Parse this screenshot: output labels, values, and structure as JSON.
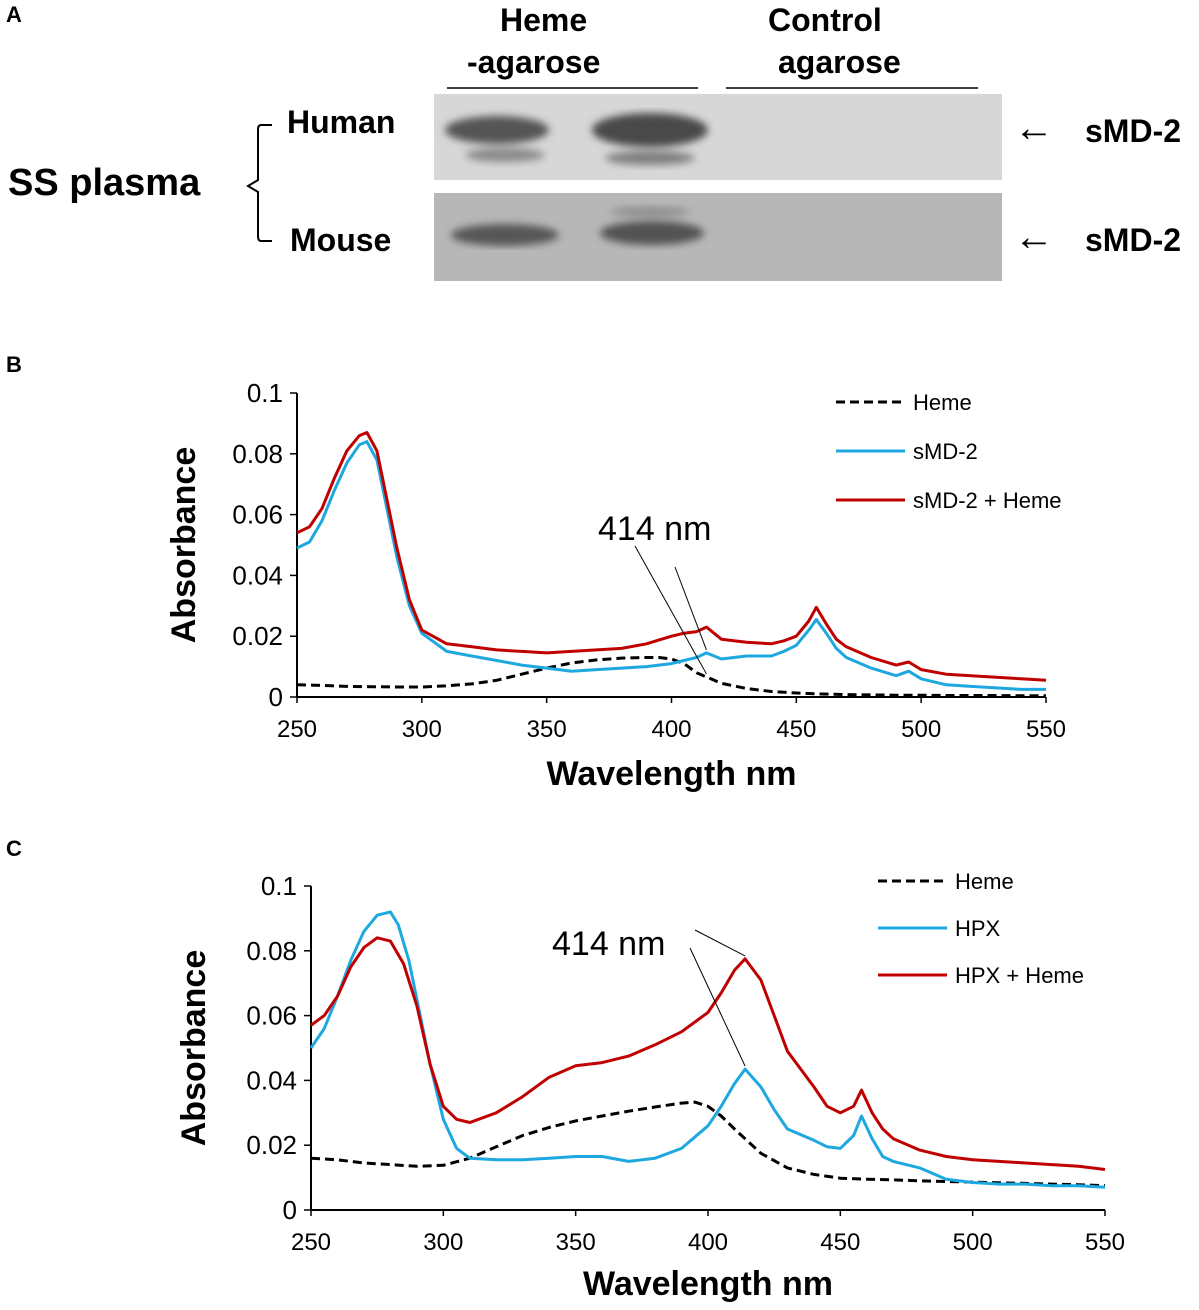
{
  "panels": {
    "a": "A",
    "b": "B",
    "c": "C"
  },
  "blot": {
    "group1_line1": "Heme",
    "group1_line2": "-agarose",
    "group2_line1": "Control",
    "group2_line2": "agarose",
    "row_human": "Human",
    "row_mouse": "Mouse",
    "sample_label": "SS plasma",
    "band_label_human": "sMD-2",
    "band_label_mouse": "sMD-2",
    "arrow_symbol": "←"
  },
  "colors": {
    "heme": "#000000",
    "protein": "#1ea8e0",
    "complex": "#c00000"
  },
  "chart_data": [
    {
      "panel": "B",
      "type": "line",
      "xlabel": "Wavelength nm",
      "ylabel": "Absorbance",
      "xlim": [
        250,
        550
      ],
      "ylim": [
        0,
        0.1
      ],
      "xticks": [
        250,
        300,
        350,
        400,
        450,
        500,
        550
      ],
      "yticks": [
        0,
        0.02,
        0.04,
        0.06,
        0.08,
        0.1
      ],
      "xtick_labels": [
        "250",
        "300",
        "350",
        "400",
        "450",
        "500",
        "550"
      ],
      "ytick_labels": [
        "0",
        "0.02",
        "0.04",
        "0.06",
        "0.08",
        "0.1"
      ],
      "annotation": {
        "text": "414 nm",
        "x": 414
      },
      "legend_position": "top-right",
      "series": [
        {
          "name": "Heme",
          "style": "dashed",
          "color": "#000000",
          "x": [
            250,
            260,
            270,
            280,
            290,
            300,
            310,
            320,
            330,
            340,
            350,
            360,
            370,
            380,
            390,
            395,
            400,
            405,
            410,
            420,
            430,
            440,
            450,
            460,
            470,
            480,
            490,
            500,
            510,
            520,
            530,
            540,
            550
          ],
          "values": [
            0.004,
            0.0038,
            0.0035,
            0.0034,
            0.0033,
            0.0033,
            0.0037,
            0.0043,
            0.0055,
            0.0075,
            0.0095,
            0.0112,
            0.0122,
            0.0128,
            0.013,
            0.013,
            0.0125,
            0.011,
            0.008,
            0.0045,
            0.0028,
            0.0018,
            0.0013,
            0.001,
            0.0008,
            0.0007,
            0.0006,
            0.0006,
            0.0005,
            0.0005,
            0.0005,
            0.0004,
            0.0004
          ]
        },
        {
          "name": "sMD-2",
          "style": "solid",
          "color": "#1ea8e0",
          "x": [
            250,
            255,
            260,
            265,
            270,
            275,
            278,
            282,
            285,
            290,
            295,
            300,
            310,
            320,
            330,
            340,
            350,
            360,
            370,
            380,
            390,
            400,
            405,
            410,
            414,
            420,
            430,
            440,
            445,
            450,
            455,
            458,
            462,
            466,
            470,
            480,
            490,
            495,
            500,
            510,
            520,
            530,
            540,
            550
          ],
          "values": [
            0.049,
            0.051,
            0.058,
            0.068,
            0.077,
            0.083,
            0.084,
            0.078,
            0.066,
            0.046,
            0.03,
            0.021,
            0.015,
            0.0135,
            0.012,
            0.0105,
            0.0095,
            0.0085,
            0.009,
            0.0095,
            0.01,
            0.011,
            0.012,
            0.013,
            0.0145,
            0.0125,
            0.0135,
            0.0135,
            0.015,
            0.017,
            0.022,
            0.0255,
            0.021,
            0.016,
            0.013,
            0.0095,
            0.007,
            0.0085,
            0.006,
            0.004,
            0.0035,
            0.003,
            0.0025,
            0.0025
          ]
        },
        {
          "name": "sMD-2 + Heme",
          "style": "solid",
          "color": "#c00000",
          "x": [
            250,
            255,
            260,
            265,
            270,
            275,
            278,
            282,
            285,
            290,
            295,
            300,
            310,
            320,
            330,
            340,
            350,
            360,
            370,
            380,
            390,
            400,
            405,
            410,
            414,
            420,
            430,
            440,
            445,
            450,
            455,
            458,
            462,
            466,
            470,
            480,
            490,
            495,
            500,
            510,
            520,
            530,
            540,
            550
          ],
          "values": [
            0.054,
            0.056,
            0.062,
            0.072,
            0.081,
            0.086,
            0.087,
            0.081,
            0.069,
            0.049,
            0.032,
            0.022,
            0.0175,
            0.0165,
            0.0155,
            0.015,
            0.0145,
            0.015,
            0.0155,
            0.016,
            0.0175,
            0.02,
            0.021,
            0.0215,
            0.023,
            0.019,
            0.018,
            0.0175,
            0.0185,
            0.02,
            0.025,
            0.0295,
            0.024,
            0.019,
            0.0165,
            0.013,
            0.0105,
            0.0115,
            0.009,
            0.0075,
            0.007,
            0.0065,
            0.006,
            0.0055
          ]
        }
      ]
    },
    {
      "panel": "C",
      "type": "line",
      "xlabel": "Wavelength nm",
      "ylabel": "Absorbance",
      "xlim": [
        250,
        550
      ],
      "ylim": [
        0,
        0.1
      ],
      "xticks": [
        250,
        300,
        350,
        400,
        450,
        500,
        550
      ],
      "yticks": [
        0,
        0.02,
        0.04,
        0.06,
        0.08,
        0.1
      ],
      "xtick_labels": [
        "250",
        "300",
        "350",
        "400",
        "450",
        "500",
        "550"
      ],
      "ytick_labels": [
        "0",
        "0.02",
        "0.04",
        "0.06",
        "0.08",
        "0.1"
      ],
      "annotation": {
        "text": "414 nm",
        "x": 414
      },
      "legend_position": "top-right",
      "series": [
        {
          "name": "Heme",
          "style": "dashed",
          "color": "#000000",
          "x": [
            250,
            260,
            270,
            280,
            290,
            300,
            310,
            320,
            330,
            340,
            350,
            360,
            370,
            380,
            390,
            395,
            400,
            405,
            410,
            420,
            430,
            440,
            450,
            460,
            470,
            480,
            490,
            500,
            510,
            520,
            530,
            540,
            550
          ],
          "values": [
            0.016,
            0.0155,
            0.0145,
            0.014,
            0.0135,
            0.0138,
            0.016,
            0.0195,
            0.023,
            0.0255,
            0.0275,
            0.029,
            0.0305,
            0.0318,
            0.033,
            0.0333,
            0.032,
            0.029,
            0.025,
            0.0175,
            0.013,
            0.011,
            0.0098,
            0.0095,
            0.0093,
            0.009,
            0.0088,
            0.0086,
            0.0084,
            0.0082,
            0.008,
            0.0078,
            0.0075
          ]
        },
        {
          "name": "HPX",
          "style": "solid",
          "color": "#1ea8e0",
          "x": [
            250,
            255,
            260,
            265,
            270,
            275,
            280,
            283,
            287,
            290,
            295,
            300,
            305,
            310,
            320,
            330,
            340,
            350,
            360,
            370,
            380,
            390,
            400,
            405,
            410,
            414,
            420,
            425,
            430,
            440,
            445,
            450,
            455,
            458,
            462,
            466,
            470,
            480,
            490,
            500,
            510,
            520,
            530,
            540,
            550
          ],
          "values": [
            0.05,
            0.056,
            0.066,
            0.077,
            0.086,
            0.091,
            0.092,
            0.088,
            0.077,
            0.065,
            0.045,
            0.028,
            0.019,
            0.016,
            0.0155,
            0.0155,
            0.016,
            0.0165,
            0.0165,
            0.015,
            0.016,
            0.019,
            0.026,
            0.032,
            0.039,
            0.0435,
            0.038,
            0.031,
            0.025,
            0.0215,
            0.0195,
            0.019,
            0.023,
            0.029,
            0.022,
            0.0165,
            0.015,
            0.013,
            0.0095,
            0.0085,
            0.008,
            0.008,
            0.0075,
            0.0075,
            0.007
          ]
        },
        {
          "name": "HPX + Heme",
          "style": "solid",
          "color": "#c00000",
          "x": [
            250,
            255,
            260,
            265,
            270,
            275,
            280,
            285,
            290,
            295,
            300,
            305,
            310,
            320,
            330,
            340,
            350,
            360,
            370,
            380,
            390,
            400,
            405,
            410,
            414,
            420,
            425,
            430,
            440,
            445,
            450,
            455,
            458,
            462,
            466,
            470,
            480,
            490,
            500,
            510,
            520,
            530,
            540,
            550
          ],
          "values": [
            0.057,
            0.06,
            0.066,
            0.075,
            0.081,
            0.084,
            0.083,
            0.076,
            0.063,
            0.045,
            0.032,
            0.028,
            0.027,
            0.03,
            0.035,
            0.041,
            0.0445,
            0.0455,
            0.0475,
            0.051,
            0.055,
            0.061,
            0.067,
            0.074,
            0.0775,
            0.071,
            0.06,
            0.049,
            0.038,
            0.032,
            0.03,
            0.032,
            0.037,
            0.03,
            0.025,
            0.022,
            0.0185,
            0.0165,
            0.0155,
            0.015,
            0.0145,
            0.014,
            0.0135,
            0.0125
          ]
        }
      ]
    }
  ]
}
